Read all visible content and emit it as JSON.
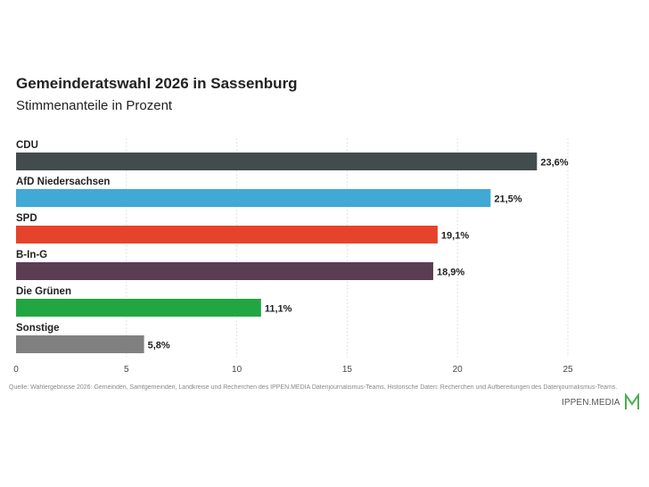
{
  "chart_data": {
    "type": "bar",
    "orientation": "horizontal",
    "title": "Gemeinderatswahl 2026 in Sassenburg",
    "subtitle": "Stimmenanteile in Prozent",
    "categories": [
      "CDU",
      "AfD Niedersachsen",
      "SPD",
      "B-In-G",
      "Die Grünen",
      "Sonstige"
    ],
    "values": [
      23.6,
      21.5,
      19.1,
      18.9,
      11.1,
      5.8
    ],
    "value_labels": [
      "23,6%",
      "21,5%",
      "19,1%",
      "18,9%",
      "11,1%",
      "5,8%"
    ],
    "colors": [
      "#434c4c",
      "#41a9d4",
      "#e5432b",
      "#5a3d52",
      "#22a644",
      "#808080"
    ],
    "xlim": [
      0,
      25
    ],
    "xticks": [
      0,
      5,
      10,
      15,
      20,
      25
    ],
    "grid": true,
    "legend": "none"
  },
  "source": "Quelle: Wahlergebnisse 2026: Gemeinden, Samtgemeinden, Landkreise und Recherchen des IPPEN.MEDIA Datenjournalismus-Teams. Historische Daten: Recherchen und Aufbereitungen des Datenjournalismus-Teams.",
  "logo": {
    "text": "IPPEN.MEDIA",
    "color": "#4caf50"
  }
}
